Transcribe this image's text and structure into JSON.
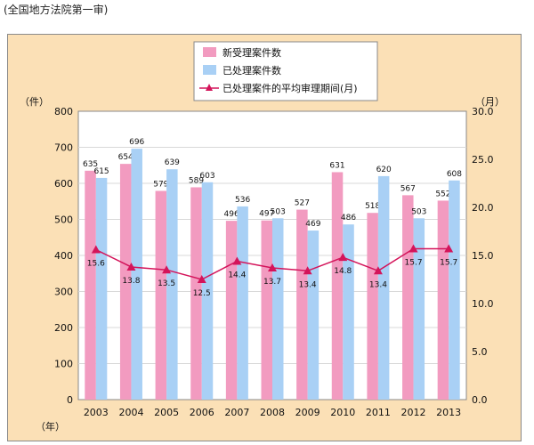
{
  "caption": "(全国地方法院第一审)",
  "chart_data": {
    "type": "bar",
    "categories": [
      "2003",
      "2004",
      "2005",
      "2006",
      "2007",
      "2008",
      "2009",
      "2010",
      "2011",
      "2012",
      "2013"
    ],
    "series": [
      {
        "name": "新受理案件数",
        "color": "#f29bc0",
        "values": [
          635,
          654,
          579,
          589,
          496,
          497,
          527,
          631,
          518,
          567,
          552
        ]
      },
      {
        "name": "已处理案件数",
        "color": "#a9d0f5",
        "values": [
          615,
          696,
          639,
          603,
          536,
          503,
          469,
          486,
          620,
          503,
          608
        ]
      }
    ],
    "line_series": {
      "name": "已处理案件的平均审理期间(月)",
      "color": "#d4145a",
      "values": [
        15.6,
        13.8,
        13.5,
        12.5,
        14.4,
        13.7,
        13.4,
        14.8,
        13.4,
        15.7,
        15.7
      ],
      "labels": [
        "15.6",
        "13.8",
        "13.5",
        "12.5",
        "14.4",
        "13.7",
        "13.4",
        "14.8",
        "13.4",
        "15.7",
        "15.7"
      ]
    },
    "ylim_left": [
      0,
      800
    ],
    "yticks_left": [
      "0",
      "100",
      "200",
      "300",
      "400",
      "500",
      "600",
      "700",
      "800"
    ],
    "ylim_right": [
      0,
      30
    ],
    "yticks_right": [
      "0.0",
      "5.0",
      "10.0",
      "15.0",
      "20.0",
      "25.0",
      "30.0"
    ],
    "ylabel_left": "（件）",
    "ylabel_right": "（月）",
    "xlabel": "（年）",
    "legend_position": "top-center"
  }
}
